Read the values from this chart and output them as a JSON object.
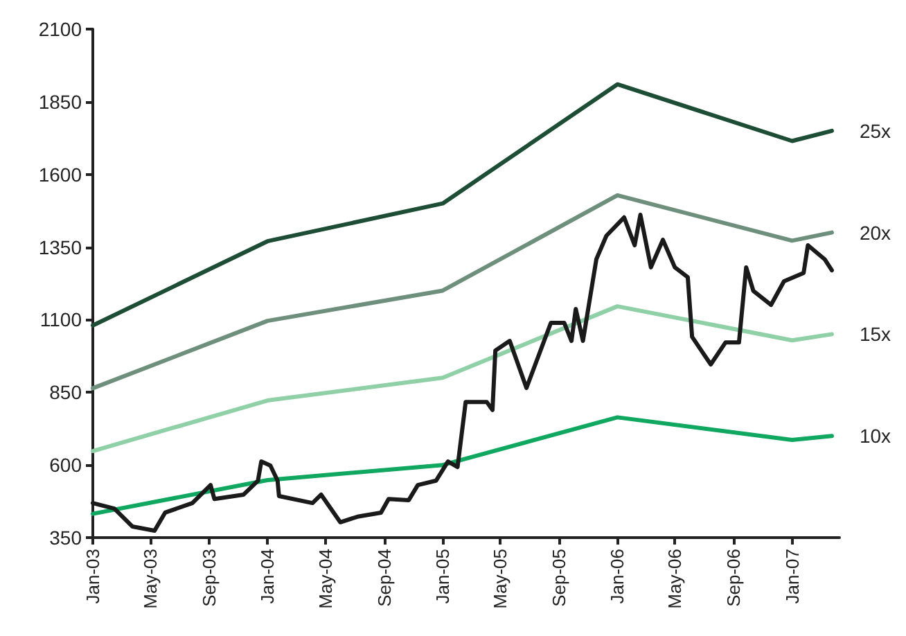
{
  "chart_data": {
    "type": "line",
    "x": [
      "2003-01-01",
      "2004-01-01",
      "2005-01-01",
      "2006-01-01",
      "2007-01-01",
      "2007-03-25"
    ],
    "series": [
      {
        "name": "25x",
        "color": "#1d4d35",
        "values": [
          1080,
          1370,
          1500,
          1910,
          1715,
          1750
        ]
      },
      {
        "name": "20x",
        "color": "#6f8f7d",
        "values": [
          864,
          1096,
          1200,
          1528,
          1372,
          1400
        ]
      },
      {
        "name": "15x",
        "color": "#8fd0a7",
        "values": [
          648,
          822,
          900,
          1146,
          1029,
          1050
        ]
      },
      {
        "name": "10x",
        "color": "#10a860",
        "values": [
          432,
          548,
          600,
          764,
          686,
          700
        ]
      },
      {
        "color": "#1a1a1a",
        "x": [
          "2003-01-01",
          "2003-02-15",
          "2003-03-25",
          "2003-05-10",
          "2003-06-01",
          "2003-07-28",
          "2003-09-04",
          "2003-09-12",
          "2003-11-12",
          "2003-12-12",
          "2003-12-19",
          "2004-01-07",
          "2004-01-22",
          "2004-01-25",
          "2004-04-04",
          "2004-04-22",
          "2004-06-01",
          "2004-07-07",
          "2004-08-25",
          "2004-09-10",
          "2004-10-22",
          "2004-11-10",
          "2004-12-18",
          "2005-01-12",
          "2005-02-01",
          "2005-02-18",
          "2005-04-03",
          "2005-04-15",
          "2005-04-21",
          "2005-05-21",
          "2005-06-25",
          "2005-08-15",
          "2005-09-12",
          "2005-09-27",
          "2005-10-06",
          "2005-10-21",
          "2005-11-18",
          "2005-12-09",
          "2006-01-15",
          "2006-02-06",
          "2006-02-18",
          "2006-03-12",
          "2006-04-06",
          "2006-05-01",
          "2006-05-28",
          "2006-06-06",
          "2006-07-15",
          "2006-08-15",
          "2006-09-12",
          "2006-09-27",
          "2006-10-12",
          "2006-11-18",
          "2006-12-15",
          "2007-01-25",
          "2007-02-03",
          "2007-03-10",
          "2007-03-25"
        ],
        "values": [
          469,
          450,
          388,
          374,
          436,
          469,
          531,
          483,
          498,
          546,
          612,
          598,
          546,
          493,
          469,
          498,
          403,
          422,
          436,
          483,
          479,
          531,
          546,
          612,
          593,
          817,
          817,
          789,
          994,
          1027,
          865,
          1089,
          1089,
          1027,
          1137,
          1027,
          1308,
          1389,
          1452,
          1356,
          1461,
          1280,
          1375,
          1280,
          1246,
          1041,
          946,
          1022,
          1022,
          1280,
          1199,
          1151,
          1232,
          1261,
          1356,
          1308,
          1270
        ]
      }
    ],
    "xlim": [
      "2003-01-01",
      "2007-04-10"
    ],
    "xticks": [
      {
        "value": "2003-01-01",
        "label": "Jan-03"
      },
      {
        "value": "2003-05-01",
        "label": "May-03"
      },
      {
        "value": "2003-09-01",
        "label": "Sep-03"
      },
      {
        "value": "2004-01-01",
        "label": "Jan-04"
      },
      {
        "value": "2004-05-01",
        "label": "May-04"
      },
      {
        "value": "2004-09-01",
        "label": "Sep-04"
      },
      {
        "value": "2005-01-01",
        "label": "Jan-05"
      },
      {
        "value": "2005-05-01",
        "label": "May-05"
      },
      {
        "value": "2005-09-01",
        "label": "Sep-05"
      },
      {
        "value": "2006-01-01",
        "label": "Jan-06"
      },
      {
        "value": "2006-05-01",
        "label": "May-06"
      },
      {
        "value": "2006-09-01",
        "label": "Sep-06"
      },
      {
        "value": "2007-01-01",
        "label": "Jan-07"
      }
    ],
    "ylim": [
      350,
      2100
    ],
    "yticks": [
      350,
      600,
      850,
      1100,
      1350,
      1600,
      1850,
      2100
    ],
    "grid": false,
    "legend": false,
    "marker": "none",
    "line_style": "solid"
  }
}
